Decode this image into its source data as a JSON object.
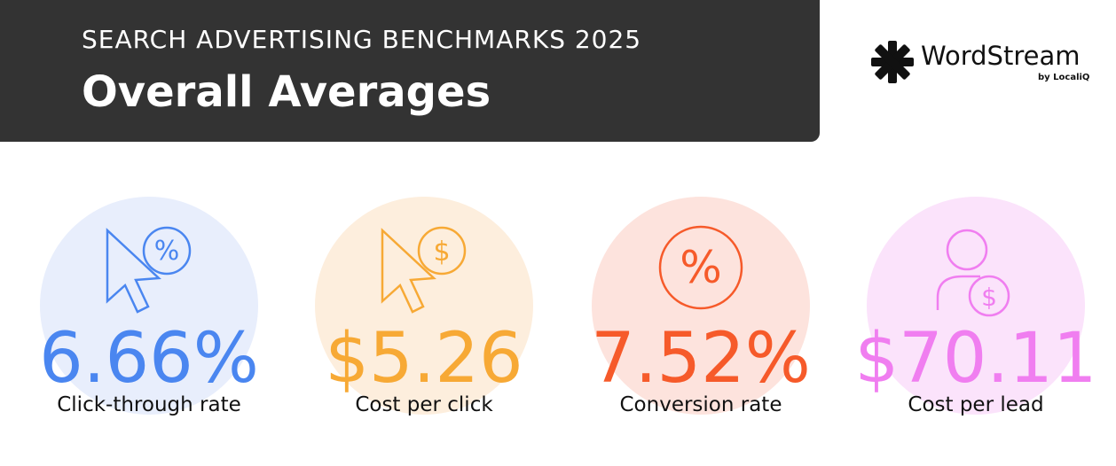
{
  "header": {
    "subtitle": "SEARCH ADVERTISING BENCHMARKS 2025",
    "title": "Overall Averages"
  },
  "logo": {
    "name": "WordStream",
    "byline": "by LocaliQ"
  },
  "metrics": [
    {
      "value": "6.66%",
      "label": "Click-through rate"
    },
    {
      "value": "$5.26",
      "label": "Cost per click"
    },
    {
      "value": "7.52%",
      "label": "Conversion rate"
    },
    {
      "value": "$70.11",
      "label": "Cost per lead"
    }
  ]
}
